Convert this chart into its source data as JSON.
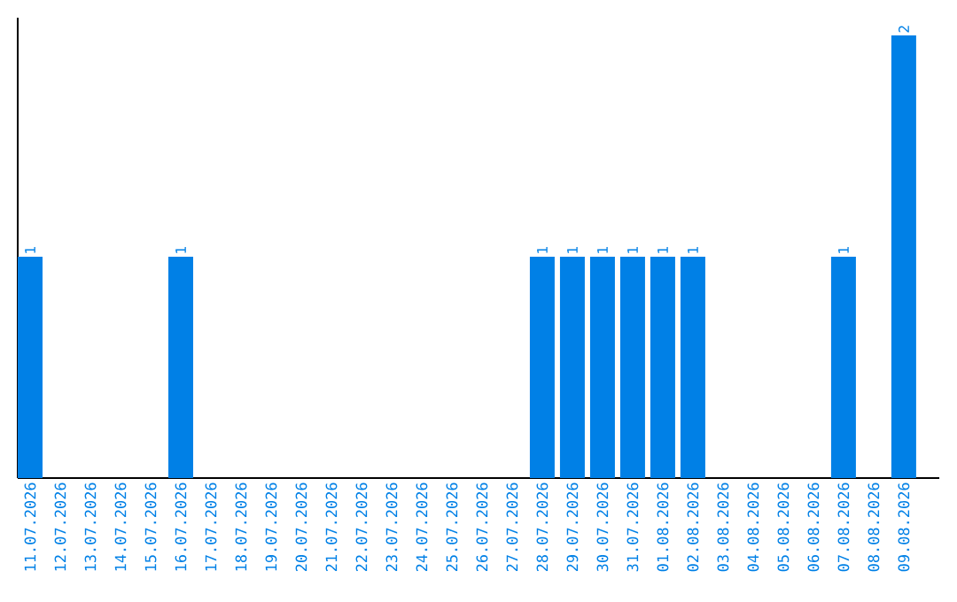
{
  "chart_data": {
    "type": "bar",
    "categories": [
      "11.07.2026",
      "12.07.2026",
      "13.07.2026",
      "14.07.2026",
      "15.07.2026",
      "16.07.2026",
      "17.07.2026",
      "18.07.2026",
      "19.07.2026",
      "20.07.2026",
      "21.07.2026",
      "22.07.2026",
      "23.07.2026",
      "24.07.2026",
      "25.07.2026",
      "26.07.2026",
      "27.07.2026",
      "28.07.2026",
      "29.07.2026",
      "30.07.2026",
      "31.07.2026",
      "01.08.2026",
      "02.08.2026",
      "03.08.2026",
      "04.08.2026",
      "05.08.2026",
      "06.08.2026",
      "07.08.2026",
      "08.08.2026",
      "09.08.2026"
    ],
    "values": [
      1,
      0,
      0,
      0,
      0,
      1,
      0,
      0,
      0,
      0,
      0,
      0,
      0,
      0,
      0,
      0,
      0,
      1,
      1,
      1,
      1,
      1,
      1,
      0,
      0,
      0,
      0,
      1,
      0,
      2
    ],
    "value_labels": [
      "1",
      null,
      null,
      null,
      null,
      "1",
      null,
      null,
      null,
      null,
      null,
      null,
      null,
      null,
      null,
      null,
      null,
      "1",
      "1",
      "1",
      "1",
      "1",
      "1",
      null,
      null,
      null,
      null,
      "1",
      null,
      "2"
    ],
    "color": "#0080e6",
    "ylim": [
      0,
      2.08
    ]
  }
}
